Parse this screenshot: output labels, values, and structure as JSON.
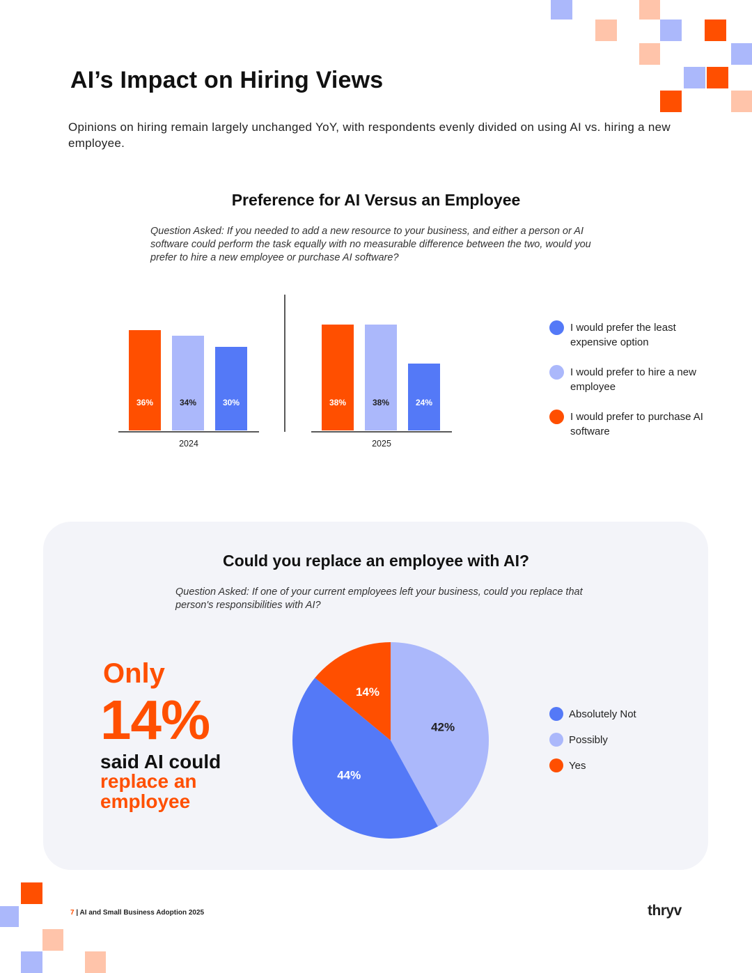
{
  "page": {
    "title": "AI’s Impact on Hiring Views",
    "subtitle": "Opinions on hiring remain largely unchanged YoY, with respondents evenly divided on using AI vs. hiring a new employee."
  },
  "colors": {
    "orange": "#ff4f00",
    "light_blue": "#abb8fb",
    "blue": "#5479f7",
    "peach": "#ffc4aa",
    "panel_bg": "#f3f4f9"
  },
  "chart1": {
    "title": "Preference for AI Versus an Employee",
    "question": "Question Asked: If you needed to add a new resource to your business, and either a person or AI software could perform the task equally with no measurable difference between the two, would you prefer to hire a new employee or purchase AI software?",
    "legend": [
      {
        "label": "I would prefer the least expensive option",
        "color": "#5479f7"
      },
      {
        "label": "I would prefer to hire a new employee",
        "color": "#abb8fb"
      },
      {
        "label": "I would prefer to purchase AI software",
        "color": "#ff4f00"
      }
    ]
  },
  "chart2": {
    "title": "Could you replace an employee with AI?",
    "question": "Question Asked: If one of your current employees left your business, could you replace that person's responsibilities with AI?",
    "callout": {
      "line1": "Only",
      "line2": "14%",
      "line3": "said AI could",
      "line4": "replace an employee"
    },
    "legend": [
      {
        "label": "Absolutely Not",
        "color": "#5479f7"
      },
      {
        "label": "Possibly",
        "color": "#abb8fb"
      },
      {
        "label": "Yes",
        "color": "#ff4f00"
      }
    ]
  },
  "chart_data": [
    {
      "type": "bar",
      "title": "Preference for AI Versus an Employee",
      "categories": [
        "2024",
        "2025"
      ],
      "series": [
        {
          "name": "I would prefer to purchase AI software",
          "color": "#ff4f00",
          "values": [
            36,
            38
          ],
          "labels": [
            "36%",
            "38%"
          ]
        },
        {
          "name": "I would prefer to hire a new employee",
          "color": "#abb8fb",
          "values": [
            34,
            38
          ],
          "labels": [
            "34%",
            "38%"
          ]
        },
        {
          "name": "I would prefer the least expensive option",
          "color": "#5479f7",
          "values": [
            30,
            24
          ],
          "labels": [
            "30%",
            "24%"
          ]
        }
      ],
      "ylim": [
        0,
        40
      ],
      "grid": false,
      "legend_position": "right"
    },
    {
      "type": "pie",
      "title": "Could you replace an employee with AI?",
      "slices": [
        {
          "name": "Possibly",
          "value": 42,
          "label": "42%",
          "color": "#abb8fb"
        },
        {
          "name": "Absolutely Not",
          "value": 44,
          "label": "44%",
          "color": "#5479f7"
        },
        {
          "name": "Yes",
          "value": 14,
          "label": "14%",
          "color": "#ff4f00"
        }
      ],
      "legend_position": "right"
    }
  ],
  "footer": {
    "page_number": "7",
    "text": " | AI and Small Business Adoption 2025",
    "logo": "thryv"
  }
}
